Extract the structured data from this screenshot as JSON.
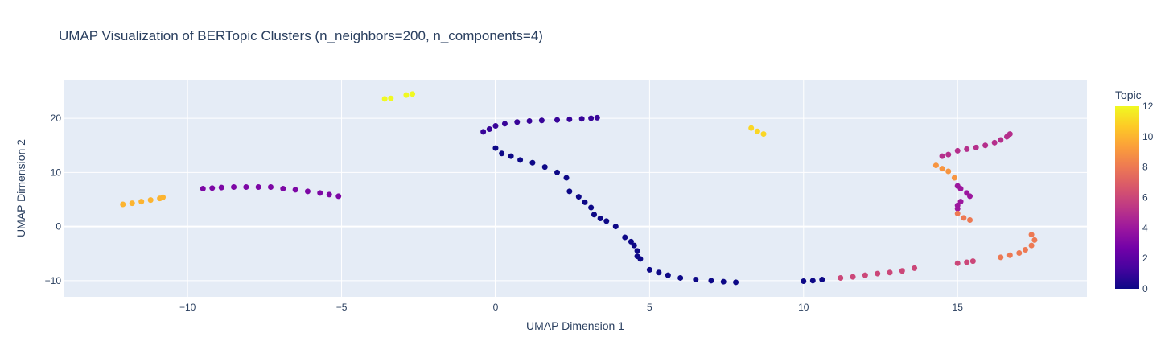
{
  "chart_data": {
    "type": "scatter",
    "title": "UMAP Visualization of BERTopic Clusters (n_neighbors=200, n_components=4)",
    "xlabel": "UMAP Dimension 1",
    "ylabel": "UMAP Dimension 2",
    "xlim": [
      -14,
      19.2
    ],
    "ylim": [
      -13,
      27
    ],
    "xticks": [
      -10,
      -5,
      0,
      5,
      10,
      15
    ],
    "yticks": [
      -10,
      0,
      10,
      20
    ],
    "colorbar": {
      "title": "Topic",
      "min": 0,
      "max": 12,
      "ticks": [
        0,
        2,
        4,
        6,
        8,
        10,
        12
      ]
    },
    "grid": true,
    "clusters": [
      {
        "topic": 0,
        "points": [
          [
            0.0,
            14.5
          ],
          [
            0.2,
            13.5
          ],
          [
            0.5,
            13.0
          ],
          [
            0.8,
            12.3
          ],
          [
            1.2,
            11.8
          ],
          [
            1.6,
            11.0
          ],
          [
            2.0,
            10.0
          ],
          [
            2.3,
            9.0
          ],
          [
            2.4,
            6.5
          ],
          [
            2.7,
            5.5
          ],
          [
            2.9,
            4.5
          ],
          [
            3.1,
            3.5
          ],
          [
            3.2,
            2.2
          ],
          [
            3.4,
            1.5
          ],
          [
            3.6,
            1.0
          ],
          [
            3.9,
            0.0
          ],
          [
            4.2,
            -2.0
          ],
          [
            4.4,
            -2.8
          ],
          [
            4.5,
            -3.5
          ],
          [
            4.6,
            -4.5
          ],
          [
            4.6,
            -5.5
          ],
          [
            4.7,
            -6.0
          ],
          [
            5.0,
            -8.0
          ],
          [
            5.3,
            -8.5
          ],
          [
            5.6,
            -9.0
          ],
          [
            6.0,
            -9.5
          ],
          [
            6.5,
            -9.8
          ],
          [
            7.0,
            -10.0
          ],
          [
            7.4,
            -10.2
          ],
          [
            7.8,
            -10.3
          ],
          [
            10.0,
            -10.1
          ],
          [
            10.3,
            -10.0
          ],
          [
            10.6,
            -9.8
          ]
        ]
      },
      {
        "topic": 1,
        "points": [
          [
            -0.4,
            17.5
          ],
          [
            -0.2,
            18.0
          ],
          [
            0.0,
            18.6
          ],
          [
            0.3,
            19.0
          ],
          [
            0.7,
            19.3
          ],
          [
            1.1,
            19.5
          ],
          [
            1.5,
            19.6
          ],
          [
            2.0,
            19.7
          ],
          [
            2.4,
            19.8
          ],
          [
            2.8,
            19.9
          ],
          [
            3.1,
            20.0
          ],
          [
            3.3,
            20.1
          ]
        ]
      },
      {
        "topic": 3,
        "points": [
          [
            -9.5,
            7.0
          ],
          [
            -9.2,
            7.1
          ],
          [
            -8.9,
            7.2
          ],
          [
            -8.5,
            7.3
          ],
          [
            -8.1,
            7.3
          ],
          [
            -7.7,
            7.3
          ],
          [
            -7.3,
            7.3
          ],
          [
            -6.9,
            7.0
          ],
          [
            -6.5,
            6.8
          ],
          [
            -6.1,
            6.5
          ],
          [
            -5.7,
            6.2
          ],
          [
            -5.4,
            5.9
          ],
          [
            -5.1,
            5.6
          ]
        ]
      },
      {
        "topic": 4,
        "points": [
          [
            15.0,
            7.5
          ],
          [
            15.1,
            7.0
          ],
          [
            15.3,
            6.2
          ],
          [
            15.4,
            5.6
          ],
          [
            15.1,
            4.6
          ],
          [
            15.0,
            3.9
          ],
          [
            15.0,
            3.3
          ]
        ]
      },
      {
        "topic": 5,
        "points": [
          [
            14.5,
            13.0
          ],
          [
            14.7,
            13.3
          ],
          [
            15.0,
            14.0
          ],
          [
            15.3,
            14.3
          ],
          [
            15.6,
            14.6
          ],
          [
            15.9,
            15.0
          ],
          [
            16.2,
            15.5
          ],
          [
            16.4,
            16.0
          ],
          [
            16.6,
            16.6
          ],
          [
            16.7,
            17.1
          ]
        ]
      },
      {
        "topic": 6,
        "points": [
          [
            11.2,
            -9.5
          ],
          [
            11.6,
            -9.3
          ],
          [
            12.0,
            -9.0
          ],
          [
            12.4,
            -8.7
          ],
          [
            12.8,
            -8.5
          ],
          [
            13.2,
            -8.2
          ],
          [
            13.6,
            -7.7
          ],
          [
            15.0,
            -6.8
          ],
          [
            15.3,
            -6.6
          ],
          [
            15.5,
            -6.4
          ]
        ]
      },
      {
        "topic": 8,
        "points": [
          [
            16.4,
            -5.7
          ],
          [
            16.7,
            -5.3
          ],
          [
            17.0,
            -4.9
          ],
          [
            17.2,
            -4.3
          ],
          [
            17.4,
            -3.5
          ],
          [
            17.5,
            -2.5
          ],
          [
            17.4,
            -1.5
          ],
          [
            15.0,
            2.4
          ],
          [
            15.2,
            1.6
          ],
          [
            15.4,
            1.2
          ]
        ]
      },
      {
        "topic": 9,
        "points": [
          [
            14.3,
            11.3
          ],
          [
            14.5,
            10.7
          ],
          [
            14.7,
            10.2
          ],
          [
            14.9,
            9.0
          ]
        ]
      },
      {
        "topic": 10,
        "points": [
          [
            -12.1,
            4.1
          ],
          [
            -11.8,
            4.3
          ],
          [
            -11.5,
            4.6
          ],
          [
            -11.2,
            4.9
          ],
          [
            -10.9,
            5.2
          ],
          [
            -10.8,
            5.4
          ]
        ]
      },
      {
        "topic": 11,
        "points": [
          [
            8.3,
            18.2
          ],
          [
            8.5,
            17.6
          ],
          [
            8.7,
            17.1
          ]
        ]
      },
      {
        "topic": 12,
        "points": [
          [
            -3.6,
            23.6
          ],
          [
            -3.4,
            23.7
          ],
          [
            -2.9,
            24.3
          ],
          [
            -2.7,
            24.5
          ]
        ]
      }
    ]
  }
}
